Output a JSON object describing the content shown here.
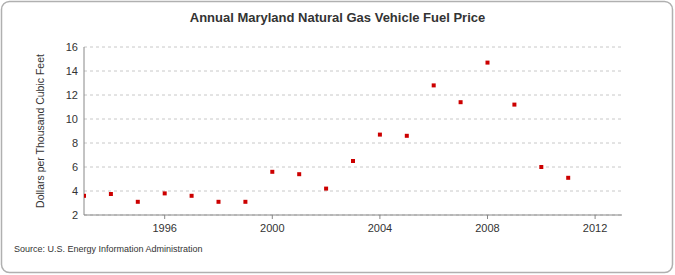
{
  "chart_data": {
    "type": "scatter",
    "title": "Annual Maryland Natural Gas Vehicle Fuel Price",
    "y_label": "Dollars per Thousand Cubic Feet",
    "source": "Source: U.S. Energy Information Administration",
    "x": [
      1993,
      1994,
      1995,
      1996,
      1997,
      1998,
      1999,
      2000,
      2001,
      2002,
      2003,
      2004,
      2005,
      2006,
      2007,
      2008,
      2009,
      2010,
      2011
    ],
    "values": [
      3.6,
      3.75,
      3.1,
      3.8,
      3.6,
      3.1,
      3.1,
      5.6,
      5.4,
      4.2,
      6.5,
      8.7,
      8.6,
      12.8,
      11.4,
      14.7,
      11.2,
      6.0,
      5.1
    ],
    "color": "#cc0000",
    "marker": "square",
    "xlim": [
      1993,
      2013
    ],
    "xticks": [
      1996,
      2000,
      2004,
      2008,
      2012
    ],
    "ylim": [
      2,
      16
    ],
    "yticks": [
      2,
      4,
      6,
      8,
      10,
      12,
      14,
      16
    ],
    "grid": true
  }
}
